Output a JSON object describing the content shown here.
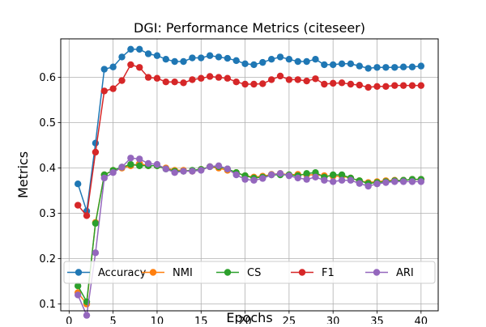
{
  "chart_data": {
    "type": "line",
    "title": "DGI: Performance Metrics (citeseer)",
    "xlabel": "Epochs",
    "ylabel": "Metrics",
    "xlim": [
      -0.95,
      41.95
    ],
    "ylim": [
      0.085,
      0.685
    ],
    "xticks": [
      0,
      5,
      10,
      15,
      20,
      25,
      30,
      35,
      40
    ],
    "xtick_labels": [
      "0",
      "5",
      "10",
      "15",
      "20",
      "25",
      "30",
      "35",
      "40"
    ],
    "yticks": [
      0.1,
      0.2,
      0.3,
      0.4,
      0.5,
      0.6
    ],
    "ytick_labels": [
      "0.1",
      "0.2",
      "0.3",
      "0.4",
      "0.5",
      "0.6"
    ],
    "grid": true,
    "legend_position": "bottom",
    "x": [
      1,
      2,
      3,
      4,
      5,
      6,
      7,
      8,
      9,
      10,
      11,
      12,
      13,
      14,
      15,
      16,
      17,
      18,
      19,
      20,
      21,
      22,
      23,
      24,
      25,
      26,
      27,
      28,
      29,
      30,
      31,
      32,
      33,
      34,
      35,
      36,
      37,
      38,
      39,
      40
    ],
    "series": [
      {
        "name": "Accuracy",
        "color": "#1f77b4",
        "values": [
          0.365,
          0.305,
          0.455,
          0.618,
          0.623,
          0.645,
          0.662,
          0.662,
          0.652,
          0.648,
          0.64,
          0.635,
          0.635,
          0.643,
          0.643,
          0.648,
          0.645,
          0.642,
          0.637,
          0.63,
          0.628,
          0.633,
          0.64,
          0.645,
          0.64,
          0.635,
          0.635,
          0.64,
          0.628,
          0.628,
          0.63,
          0.63,
          0.625,
          0.62,
          0.622,
          0.622,
          0.622,
          0.623,
          0.623,
          0.625
        ]
      },
      {
        "name": "NMI",
        "color": "#ff7f0e",
        "values": [
          0.125,
          0.1,
          0.28,
          0.385,
          0.395,
          0.4,
          0.405,
          0.41,
          0.405,
          0.405,
          0.4,
          0.395,
          0.395,
          0.393,
          0.397,
          0.403,
          0.4,
          0.395,
          0.39,
          0.383,
          0.38,
          0.382,
          0.386,
          0.388,
          0.385,
          0.386,
          0.385,
          0.385,
          0.383,
          0.382,
          0.382,
          0.378,
          0.372,
          0.368,
          0.37,
          0.372,
          0.373,
          0.373,
          0.375,
          0.375
        ]
      },
      {
        "name": "CS",
        "color": "#2ca02c",
        "values": [
          0.14,
          0.105,
          0.278,
          0.385,
          0.395,
          0.402,
          0.408,
          0.405,
          0.405,
          0.405,
          0.398,
          0.393,
          0.393,
          0.395,
          0.397,
          0.403,
          0.403,
          0.398,
          0.39,
          0.383,
          0.378,
          0.38,
          0.385,
          0.385,
          0.385,
          0.383,
          0.388,
          0.39,
          0.38,
          0.385,
          0.385,
          0.378,
          0.372,
          0.366,
          0.368,
          0.37,
          0.372,
          0.373,
          0.375,
          0.375
        ]
      },
      {
        "name": "F1",
        "color": "#d62728",
        "values": [
          0.318,
          0.295,
          0.435,
          0.57,
          0.575,
          0.593,
          0.628,
          0.622,
          0.6,
          0.598,
          0.59,
          0.59,
          0.588,
          0.595,
          0.598,
          0.602,
          0.6,
          0.598,
          0.59,
          0.585,
          0.585,
          0.586,
          0.595,
          0.603,
          0.595,
          0.595,
          0.592,
          0.597,
          0.585,
          0.587,
          0.588,
          0.585,
          0.583,
          0.578,
          0.58,
          0.58,
          0.582,
          0.582,
          0.582,
          0.582
        ]
      },
      {
        "name": "ARI",
        "color": "#9467bd",
        "values": [
          0.12,
          0.075,
          0.213,
          0.378,
          0.39,
          0.402,
          0.422,
          0.42,
          0.41,
          0.408,
          0.398,
          0.39,
          0.393,
          0.393,
          0.395,
          0.403,
          0.405,
          0.398,
          0.385,
          0.375,
          0.373,
          0.377,
          0.385,
          0.388,
          0.383,
          0.378,
          0.375,
          0.38,
          0.373,
          0.37,
          0.373,
          0.373,
          0.366,
          0.36,
          0.365,
          0.368,
          0.37,
          0.37,
          0.37,
          0.37
        ]
      }
    ]
  }
}
